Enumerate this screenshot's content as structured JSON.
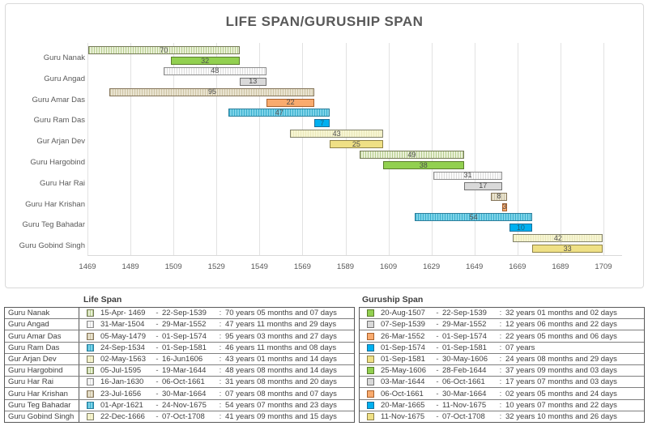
{
  "title": "LIFE SPAN/GURUSHIP SPAN",
  "chart_data": {
    "type": "bar",
    "subtype": "gantt-horizontal",
    "title": "LIFE SPAN/GURUSHIP SPAN",
    "x_axis": {
      "min": 1469,
      "max": 1709,
      "tick_step": 20,
      "ticks": [
        1469,
        1489,
        1509,
        1529,
        1549,
        1569,
        1589,
        1609,
        1629,
        1649,
        1669,
        1689,
        1709
      ]
    },
    "grid": "vertical-on",
    "legend_position": "none",
    "categories": [
      "Guru Nanak",
      "Guru Angad",
      "Guru Amar Das",
      "Guru Ram Das",
      "Gur Arjan Dev",
      "Guru Hargobind",
      "Guru Har Rai",
      "Guru Har Krishan",
      "Guru Teg Bahadar",
      "Guru Gobind Singh"
    ],
    "series": [
      {
        "name": "Life Span",
        "bars": [
          {
            "start": 1469.29,
            "end": 1539.72,
            "label": "70"
          },
          {
            "start": 1504.24,
            "end": 1552.24,
            "label": "48"
          },
          {
            "start": 1479.34,
            "end": 1574.67,
            "label": "95"
          },
          {
            "start": 1534.73,
            "end": 1581.67,
            "label": "47"
          },
          {
            "start": 1563.33,
            "end": 1606.46,
            "label": "43"
          },
          {
            "start": 1595.51,
            "end": 1644.21,
            "label": "49"
          },
          {
            "start": 1630.04,
            "end": 1661.76,
            "label": "31"
          },
          {
            "start": 1656.56,
            "end": 1664.24,
            "label": "8"
          },
          {
            "start": 1621.25,
            "end": 1675.9,
            "label": "54"
          },
          {
            "start": 1666.97,
            "end": 1708.76,
            "label": "42"
          }
        ]
      },
      {
        "name": "Guruship Span",
        "bars": [
          {
            "start": 1507.63,
            "end": 1539.72,
            "label": "32"
          },
          {
            "start": 1539.68,
            "end": 1552.24,
            "label": "13"
          },
          {
            "start": 1552.23,
            "end": 1574.67,
            "label": "22"
          },
          {
            "start": 1574.67,
            "end": 1581.67,
            "label": "7"
          },
          {
            "start": 1581.67,
            "end": 1606.41,
            "label": "25"
          },
          {
            "start": 1606.4,
            "end": 1644.16,
            "label": "38"
          },
          {
            "start": 1644.17,
            "end": 1661.76,
            "label": "17"
          },
          {
            "start": 1661.76,
            "end": 1664.24,
            "label": "3"
          },
          {
            "start": 1665.21,
            "end": 1675.86,
            "label": "10"
          },
          {
            "start": 1675.86,
            "end": 1708.76,
            "label": "33"
          }
        ]
      }
    ],
    "palette": [
      {
        "life_fill": "#eaf0d8",
        "life_stripe": "#b5cd8d",
        "life_border": "#757a58",
        "guruship_fill": "#92d050",
        "guruship_border": "#5a7d2a"
      },
      {
        "life_fill": "#fbfbfb",
        "life_stripe": "#dcdcdc",
        "life_border": "#8c8c8c",
        "guruship_fill": "#d9d9d9",
        "guruship_border": "#737373"
      },
      {
        "life_fill": "#e9e3d0",
        "life_stripe": "#cdc4a5",
        "life_border": "#85755a",
        "guruship_fill": "#f9ab6e",
        "guruship_border": "#a8602c"
      },
      {
        "life_fill": "#7ed3e8",
        "life_stripe": "#3aafce",
        "life_border": "#2d7f9c",
        "guruship_fill": "#00b0f0",
        "guruship_border": "#1a6f99",
        "guruship_label_color": "#1d5f7a"
      },
      {
        "life_fill": "#f6f5d2",
        "life_stripe": "#ebe8bb",
        "life_border": "#83836b",
        "guruship_fill": "#efe085",
        "guruship_border": "#8f8347"
      }
    ]
  },
  "tables": {
    "life": {
      "header": "Life Span",
      "rows": [
        {
          "name": "Guru Nanak",
          "start": "15-Apr- 1469",
          "end": "22-Sep-1539",
          "duration": "70 years 05 months and 07 days"
        },
        {
          "name": "Guru Angad",
          "start": "31-Mar-1504",
          "end": "29-Mar-1552",
          "duration": "47 years 11 months and 29 days"
        },
        {
          "name": "Guru Amar Das",
          "start": "05-May-1479",
          "end": "01-Sep-1574",
          "duration": "95 years 03 months and 27 days"
        },
        {
          "name": "Guru Ram Das",
          "start": "24-Sep-1534",
          "end": "01-Sep-1581",
          "duration": "46 years 11 months and 08 days"
        },
        {
          "name": "Gur Arjan Dev",
          "start": "02-May-1563",
          "end": "16-Jun1606",
          "duration": "43 years 01 months and 14 days"
        },
        {
          "name": "Guru Hargobind",
          "start": "05-Jul-1595",
          "end": "19-Mar-1644",
          "duration": "48 years 08 months and 14 days"
        },
        {
          "name": "Guru Har Rai",
          "start": "16-Jan-1630",
          "end": "06-Oct-1661",
          "duration": "31 years 08 months and 20 days"
        },
        {
          "name": "Guru Har Krishan",
          "start": "23-Jul-1656",
          "end": "30-Mar-1664",
          "duration": "07 years 08 months and 07 days"
        },
        {
          "name": "Guru Teg Bahadar",
          "start": "01-Apr-1621",
          "end": "24-Nov-1675",
          "duration": "54 years 07 months and 23 days"
        },
        {
          "name": "Guru Gobind Singh",
          "start": "22-Dec-1666",
          "end": "07-Oct-1708",
          "duration": "41 years 09 months and 15 days"
        }
      ],
      "separator": "-",
      "colon": ":"
    },
    "guruship": {
      "header": "Guruship Span",
      "rows": [
        {
          "start": "20-Aug-1507",
          "end": "22-Sep-1539",
          "duration": "32 years 01 months and 02 days"
        },
        {
          "start": "07-Sep-1539",
          "end": "29-Mar-1552",
          "duration": "12 years 06 months and 22 days"
        },
        {
          "start": "26-Mar-1552",
          "end": "01-Sep-1574",
          "duration": "22 years 05 months and 06 days"
        },
        {
          "start": "01-Sep-1574",
          "end": "01-Sep-1581",
          "duration": "07 years"
        },
        {
          "start": "01-Sep-1581",
          "end": "30-May-1606",
          "duration": "24 years 08 months and 29 days"
        },
        {
          "start": "25-May-1606",
          "end": "28-Feb-1644",
          "duration": "37 years 09 months and 03 days"
        },
        {
          "start": "03-Mar-1644",
          "end": "06-Oct-1661",
          "duration": "17 years 07 months and 03 days"
        },
        {
          "start": "06-Oct-1661",
          "end": "30-Mar-1664",
          "duration": "02 years 05 months and 24 days"
        },
        {
          "start": "20-Mar-1665",
          "end": "11-Nov-1675",
          "duration": "10 years 07 months and 22 days"
        },
        {
          "start": "11-Nov-1675",
          "end": "07-Oct-1708",
          "duration": "32 years 10 months and 26 days"
        }
      ],
      "separator": "-",
      "colon": ":"
    }
  }
}
